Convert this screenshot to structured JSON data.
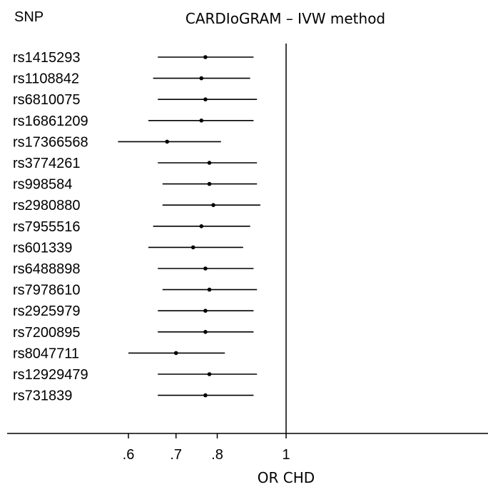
{
  "header": {
    "column_label": "SNP"
  },
  "chart_data": {
    "type": "forest",
    "title": "CARDIoGRAM – IVW method",
    "xlabel": "OR CHD",
    "xscale": "log",
    "xlim": [
      0.5,
      2.0
    ],
    "reference_line": 1,
    "ticks": [
      {
        "value": 0.6,
        "label": ".6"
      },
      {
        "value": 0.7,
        "label": ".7"
      },
      {
        "value": 0.8,
        "label": ".8"
      },
      {
        "value": 1.0,
        "label": "1"
      }
    ],
    "rows": [
      {
        "snp": "rs1415293",
        "or": 0.77,
        "lo": 0.66,
        "hi": 0.9
      },
      {
        "snp": "rs1108842",
        "or": 0.76,
        "lo": 0.65,
        "hi": 0.89
      },
      {
        "snp": "rs6810075",
        "or": 0.77,
        "lo": 0.66,
        "hi": 0.91
      },
      {
        "snp": "rs16861209",
        "or": 0.76,
        "lo": 0.64,
        "hi": 0.9
      },
      {
        "snp": "rs17366568",
        "or": 0.68,
        "lo": 0.58,
        "hi": 0.81
      },
      {
        "snp": "rs3774261",
        "or": 0.78,
        "lo": 0.66,
        "hi": 0.91
      },
      {
        "snp": "rs998584",
        "or": 0.78,
        "lo": 0.67,
        "hi": 0.91
      },
      {
        "snp": "rs2980880",
        "or": 0.79,
        "lo": 0.67,
        "hi": 0.92
      },
      {
        "snp": "rs7955516",
        "or": 0.76,
        "lo": 0.65,
        "hi": 0.89
      },
      {
        "snp": "rs601339",
        "or": 0.74,
        "lo": 0.64,
        "hi": 0.87
      },
      {
        "snp": "rs6488898",
        "or": 0.77,
        "lo": 0.66,
        "hi": 0.9
      },
      {
        "snp": "rs7978610",
        "or": 0.78,
        "lo": 0.67,
        "hi": 0.91
      },
      {
        "snp": "rs2925979",
        "or": 0.77,
        "lo": 0.66,
        "hi": 0.9
      },
      {
        "snp": "rs7200895",
        "or": 0.77,
        "lo": 0.66,
        "hi": 0.9
      },
      {
        "snp": "rs8047711",
        "or": 0.7,
        "lo": 0.6,
        "hi": 0.82
      },
      {
        "snp": "rs12929479",
        "or": 0.78,
        "lo": 0.66,
        "hi": 0.91
      },
      {
        "snp": "rs731839",
        "or": 0.77,
        "lo": 0.66,
        "hi": 0.9
      }
    ]
  }
}
